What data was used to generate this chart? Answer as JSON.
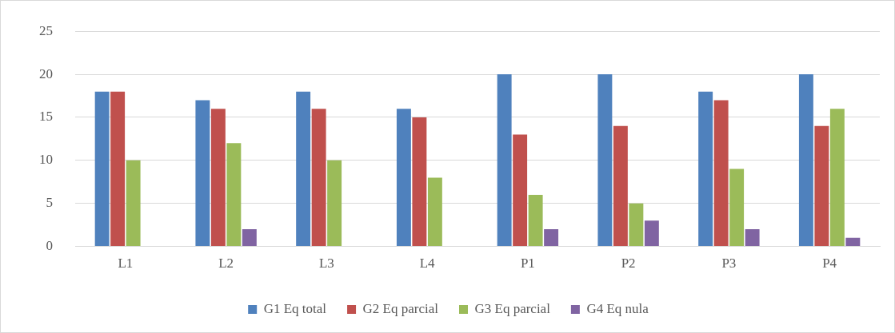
{
  "chart_data": {
    "type": "bar",
    "categories": [
      "L1",
      "L2",
      "L3",
      "L4",
      "P1",
      "P2",
      "P3",
      "P4"
    ],
    "series": [
      {
        "name": "G1 Eq total",
        "color": "#4f81bd",
        "values": [
          18,
          17,
          18,
          16,
          20,
          20,
          18,
          20
        ]
      },
      {
        "name": "G2 Eq parcial",
        "color": "#c0504d",
        "values": [
          18,
          16,
          16,
          15,
          13,
          14,
          17,
          14
        ]
      },
      {
        "name": "G3 Eq parcial",
        "color": "#9bbb59",
        "values": [
          10,
          12,
          10,
          8,
          6,
          5,
          9,
          16
        ]
      },
      {
        "name": "G4 Eq nula",
        "color": "#8064a2",
        "values": [
          0,
          2,
          0,
          0,
          2,
          3,
          2,
          1
        ]
      }
    ],
    "ylim": [
      0,
      25
    ],
    "yticks": [
      0,
      5,
      10,
      15,
      20,
      25
    ],
    "grid": "y",
    "legend": "bottom"
  }
}
